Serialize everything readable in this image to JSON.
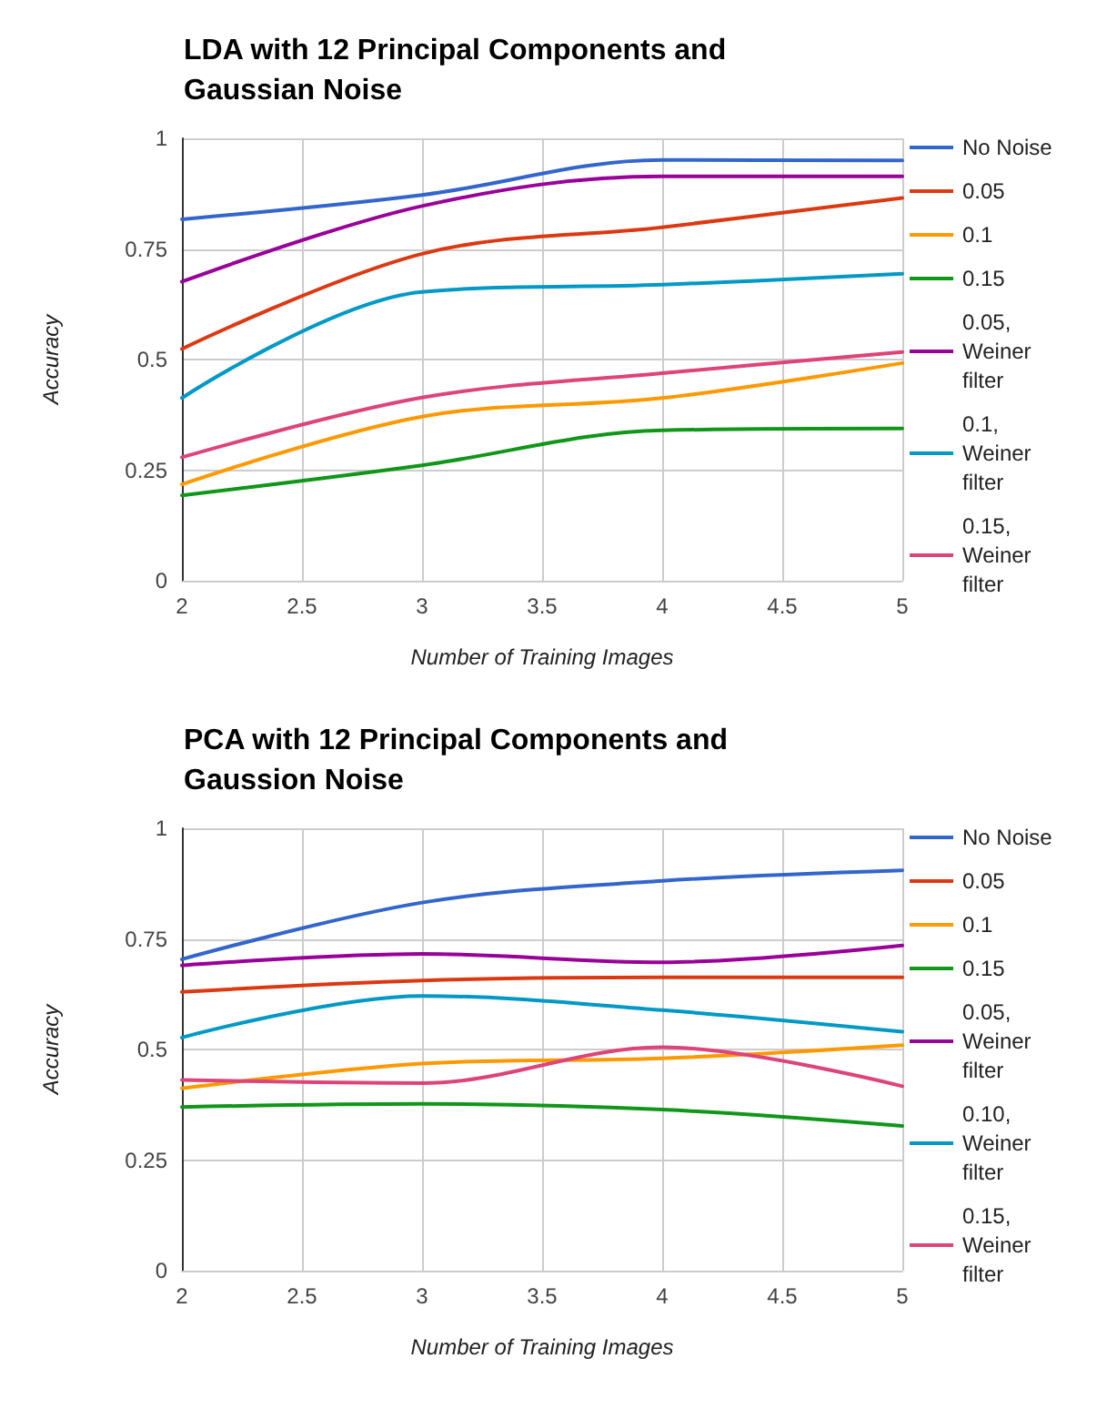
{
  "chart_data": [
    {
      "type": "line",
      "title": "LDA with 12 Principal Components and Gaussian Noise",
      "xlabel": "Number of Training Images",
      "ylabel": "Accuracy",
      "x": [
        2,
        3,
        4,
        5
      ],
      "xlim": [
        2,
        5
      ],
      "xticks": [
        2,
        2.5,
        3,
        3.5,
        4,
        4.5,
        5
      ],
      "ylim": [
        0,
        1
      ],
      "yticks": [
        0,
        0.25,
        0.5,
        0.75,
        1
      ],
      "grid": true,
      "legend": "right",
      "marker": "none",
      "line_style": "solid",
      "series": [
        {
          "name": "No Noise",
          "color": "#3366cc",
          "values": [
            0.817,
            0.872,
            0.951,
            0.95
          ]
        },
        {
          "name": "0.05",
          "color": "#dc3912",
          "values": [
            0.524,
            0.739,
            0.799,
            0.865
          ]
        },
        {
          "name": "0.1",
          "color": "#ff9900",
          "values": [
            0.218,
            0.371,
            0.413,
            0.492
          ]
        },
        {
          "name": "0.15",
          "color": "#109618",
          "values": [
            0.193,
            0.261,
            0.34,
            0.344
          ]
        },
        {
          "name": "0.05, Weiner filter",
          "color": "#990099",
          "values": [
            0.676,
            0.847,
            0.914,
            0.914
          ]
        },
        {
          "name": "0.1, Weiner filter",
          "color": "#0099c6",
          "values": [
            0.413,
            0.653,
            0.669,
            0.694
          ]
        },
        {
          "name": "0.15, Weiner filter",
          "color": "#dd4477",
          "values": [
            0.279,
            0.414,
            0.469,
            0.517
          ]
        }
      ]
    },
    {
      "type": "line",
      "title": "PCA with 12 Principal Components and Gaussion Noise",
      "xlabel": "Number of Training Images",
      "ylabel": "Accuracy",
      "x": [
        2,
        3,
        4,
        5
      ],
      "xlim": [
        2,
        5
      ],
      "xticks": [
        2,
        2.5,
        3,
        3.5,
        4,
        4.5,
        5
      ],
      "ylim": [
        0,
        1
      ],
      "yticks": [
        0,
        0.25,
        0.5,
        0.75,
        1
      ],
      "grid": true,
      "legend": "right",
      "marker": "none",
      "line_style": "solid",
      "series": [
        {
          "name": "No Noise",
          "color": "#3366cc",
          "values": [
            0.704,
            0.832,
            0.881,
            0.905
          ]
        },
        {
          "name": "0.05",
          "color": "#dc3912",
          "values": [
            0.63,
            0.656,
            0.663,
            0.663
          ]
        },
        {
          "name": "0.1",
          "color": "#ff9900",
          "values": [
            0.412,
            0.468,
            0.48,
            0.51
          ]
        },
        {
          "name": "0.15",
          "color": "#109618",
          "values": [
            0.37,
            0.377,
            0.364,
            0.327
          ]
        },
        {
          "name": "0.05, Weiner filter",
          "color": "#990099",
          "values": [
            0.69,
            0.716,
            0.697,
            0.735
          ]
        },
        {
          "name": "0.10, Weiner filter",
          "color": "#0099c6",
          "values": [
            0.527,
            0.621,
            0.589,
            0.54
          ]
        },
        {
          "name": "0.15, Weiner filter",
          "color": "#dd4477",
          "values": [
            0.431,
            0.424,
            0.505,
            0.417
          ]
        }
      ]
    }
  ]
}
